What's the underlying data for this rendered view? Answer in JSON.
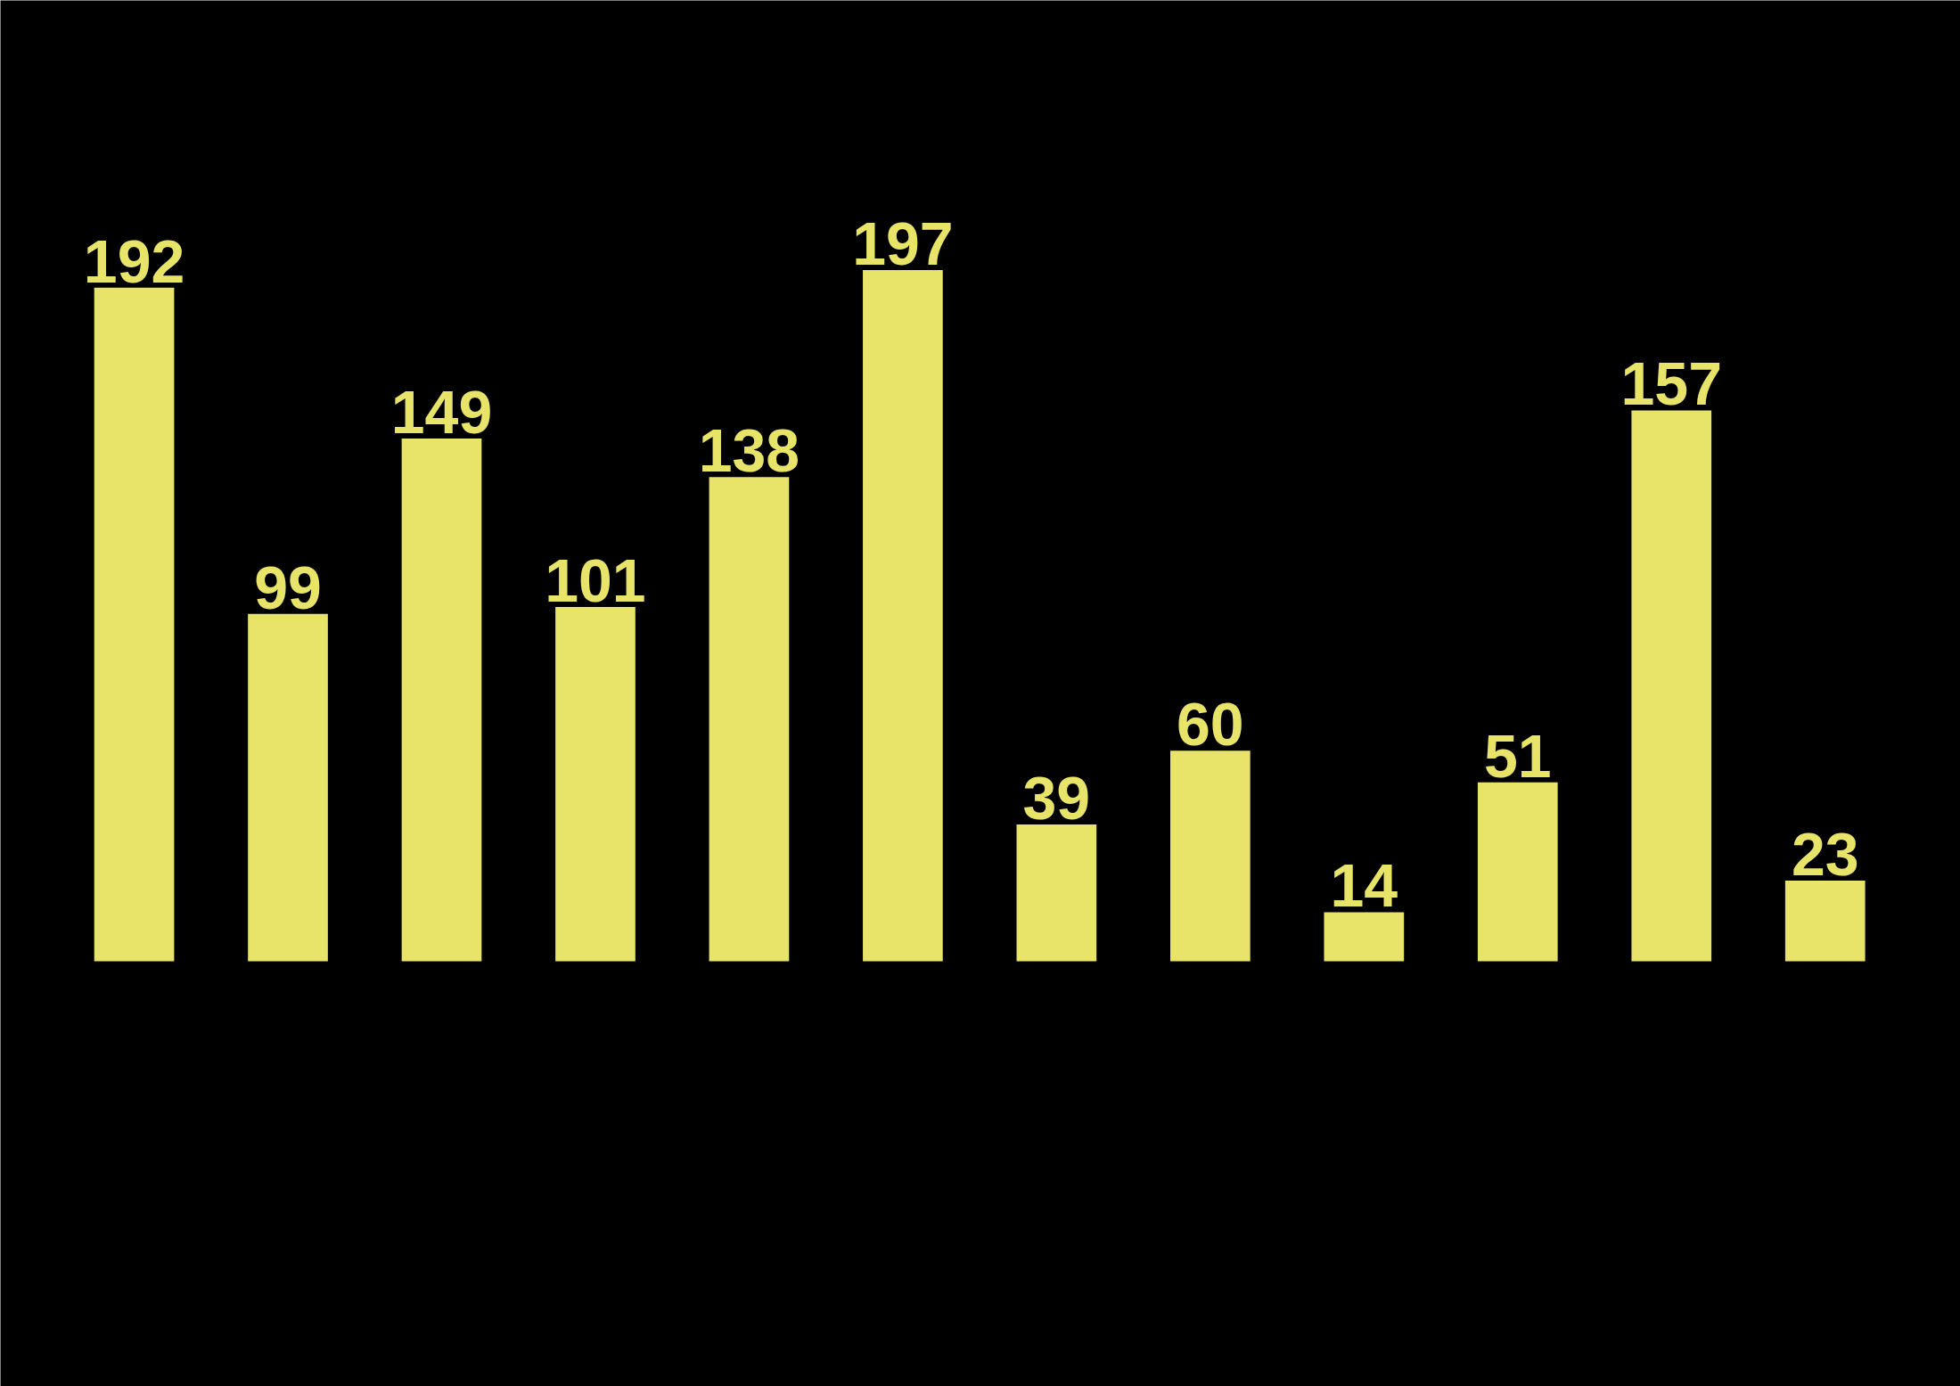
{
  "chart_data": {
    "type": "bar",
    "categories": [
      null,
      null,
      null,
      null,
      null,
      null,
      null,
      null,
      null,
      null,
      null,
      null
    ],
    "values": [
      192,
      99,
      149,
      101,
      138,
      197,
      39,
      60,
      14,
      51,
      157,
      23
    ],
    "color": "#e8e46a",
    "data_labels": true,
    "grid": false
  }
}
